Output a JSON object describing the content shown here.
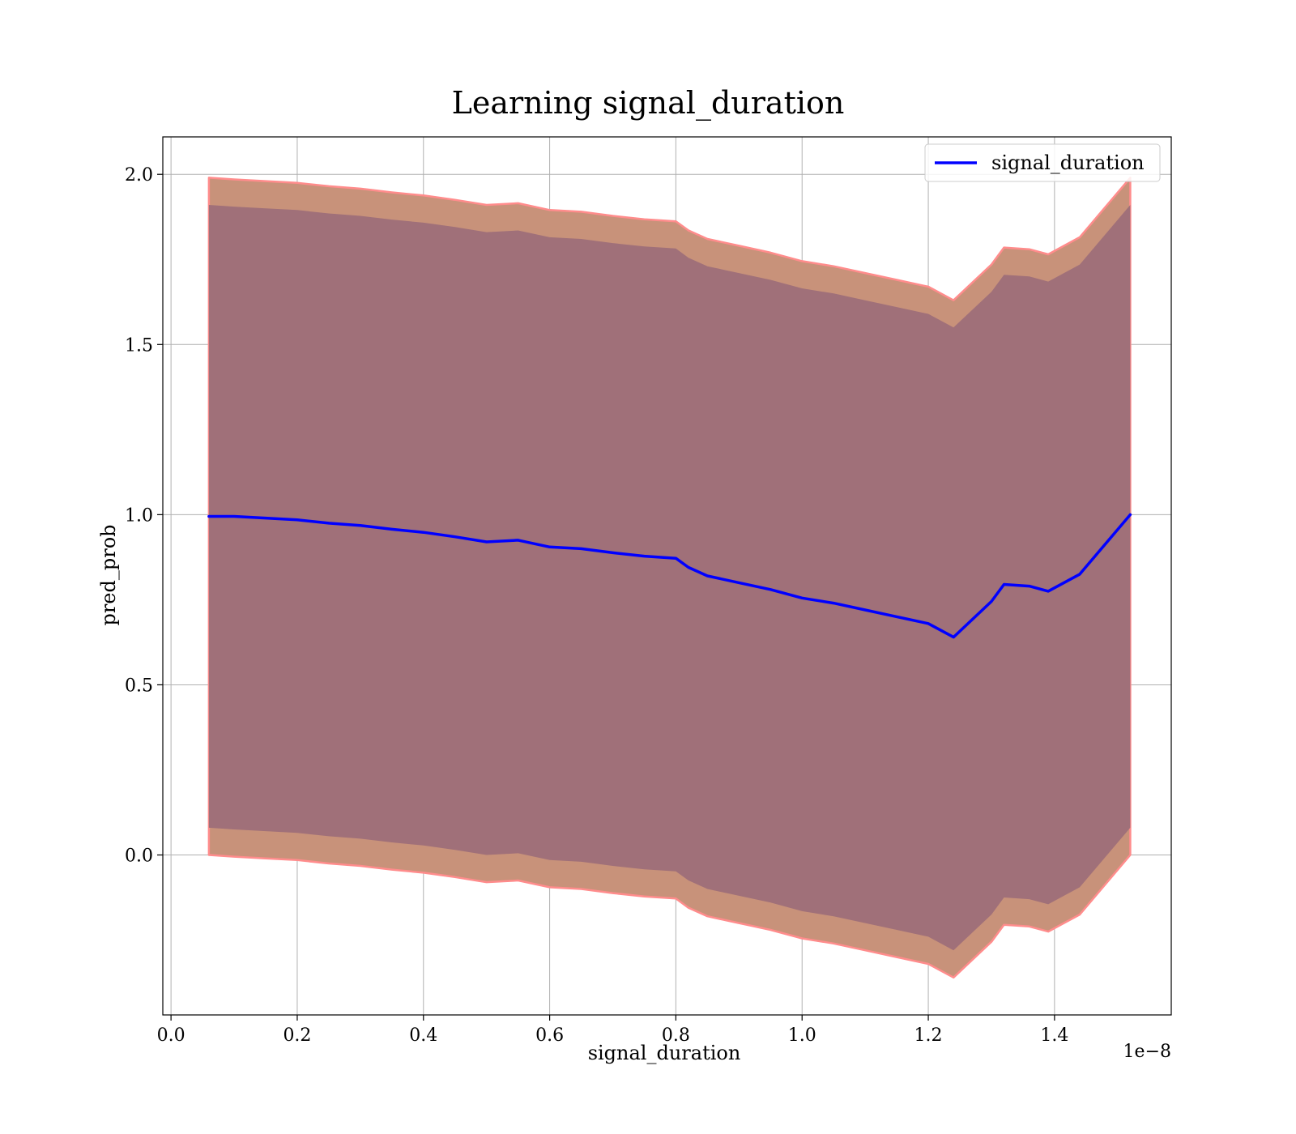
{
  "chart_data": {
    "type": "area",
    "title": "Learning signal_duration",
    "xlabel": "signal_duration",
    "ylabel": "pred_prob",
    "x_offset_text": "1e−8",
    "x_scale_note": "tick values shown in units of 1e-8",
    "xlim": [
      -0.013,
      1.585
    ],
    "ylim": [
      -0.47,
      2.11
    ],
    "x_ticks": [
      0.0,
      0.2,
      0.4,
      0.6,
      0.8,
      1.0,
      1.2,
      1.4
    ],
    "x_tick_labels": [
      "0.0",
      "0.2",
      "0.4",
      "0.6",
      "0.8",
      "1.0",
      "1.2",
      "1.4"
    ],
    "y_ticks": [
      0.0,
      0.5,
      1.0,
      1.5,
      2.0
    ],
    "y_tick_labels": [
      "0.0",
      "0.5",
      "1.0",
      "1.5",
      "2.0"
    ],
    "grid": true,
    "legend": {
      "placement": "top-right",
      "entries": [
        "signal_duration"
      ]
    },
    "colors": {
      "line": "#0000ff",
      "outer_band": "#c8927a",
      "outer_band_edge": "#ff8c8c",
      "inner_band": "#a07079"
    },
    "x": [
      0.06,
      0.1,
      0.15,
      0.2,
      0.25,
      0.3,
      0.35,
      0.4,
      0.45,
      0.5,
      0.55,
      0.6,
      0.65,
      0.7,
      0.75,
      0.8,
      0.82,
      0.85,
      0.9,
      0.95,
      1.0,
      1.05,
      1.1,
      1.15,
      1.2,
      1.24,
      1.3,
      1.32,
      1.36,
      1.39,
      1.44,
      1.52
    ],
    "series": [
      {
        "name": "signal_duration",
        "values": [
          0.995,
          0.995,
          0.99,
          0.985,
          0.975,
          0.968,
          0.957,
          0.948,
          0.935,
          0.92,
          0.925,
          0.905,
          0.9,
          0.888,
          0.878,
          0.872,
          0.845,
          0.82,
          0.8,
          0.78,
          0.755,
          0.74,
          0.72,
          0.7,
          0.68,
          0.64,
          0.745,
          0.795,
          0.79,
          0.775,
          0.825,
          1.0
        ]
      }
    ],
    "bands": [
      {
        "kind": "outer",
        "lower": [
          0.0,
          -0.005,
          -0.01,
          -0.015,
          -0.025,
          -0.032,
          -0.043,
          -0.052,
          -0.065,
          -0.08,
          -0.075,
          -0.095,
          -0.1,
          -0.112,
          -0.122,
          -0.128,
          -0.155,
          -0.18,
          -0.2,
          -0.22,
          -0.245,
          -0.26,
          -0.28,
          -0.3,
          -0.32,
          -0.36,
          -0.255,
          -0.205,
          -0.21,
          -0.225,
          -0.175,
          0.0
        ],
        "upper": [
          1.99,
          1.985,
          1.98,
          1.975,
          1.965,
          1.958,
          1.947,
          1.938,
          1.925,
          1.91,
          1.915,
          1.895,
          1.89,
          1.878,
          1.868,
          1.862,
          1.835,
          1.81,
          1.79,
          1.77,
          1.745,
          1.73,
          1.71,
          1.69,
          1.67,
          1.63,
          1.735,
          1.785,
          1.78,
          1.765,
          1.815,
          1.99
        ]
      },
      {
        "kind": "inner",
        "lower": [
          0.08,
          0.075,
          0.07,
          0.065,
          0.055,
          0.048,
          0.037,
          0.028,
          0.015,
          0.0,
          0.005,
          -0.015,
          -0.02,
          -0.032,
          -0.042,
          -0.048,
          -0.075,
          -0.1,
          -0.12,
          -0.14,
          -0.165,
          -0.18,
          -0.2,
          -0.22,
          -0.24,
          -0.28,
          -0.175,
          -0.125,
          -0.13,
          -0.145,
          -0.095,
          0.08
        ],
        "upper": [
          1.91,
          1.905,
          1.9,
          1.895,
          1.885,
          1.878,
          1.867,
          1.858,
          1.845,
          1.83,
          1.835,
          1.815,
          1.81,
          1.798,
          1.788,
          1.782,
          1.755,
          1.73,
          1.71,
          1.69,
          1.665,
          1.65,
          1.63,
          1.61,
          1.59,
          1.55,
          1.655,
          1.705,
          1.7,
          1.685,
          1.735,
          1.91
        ]
      }
    ]
  }
}
